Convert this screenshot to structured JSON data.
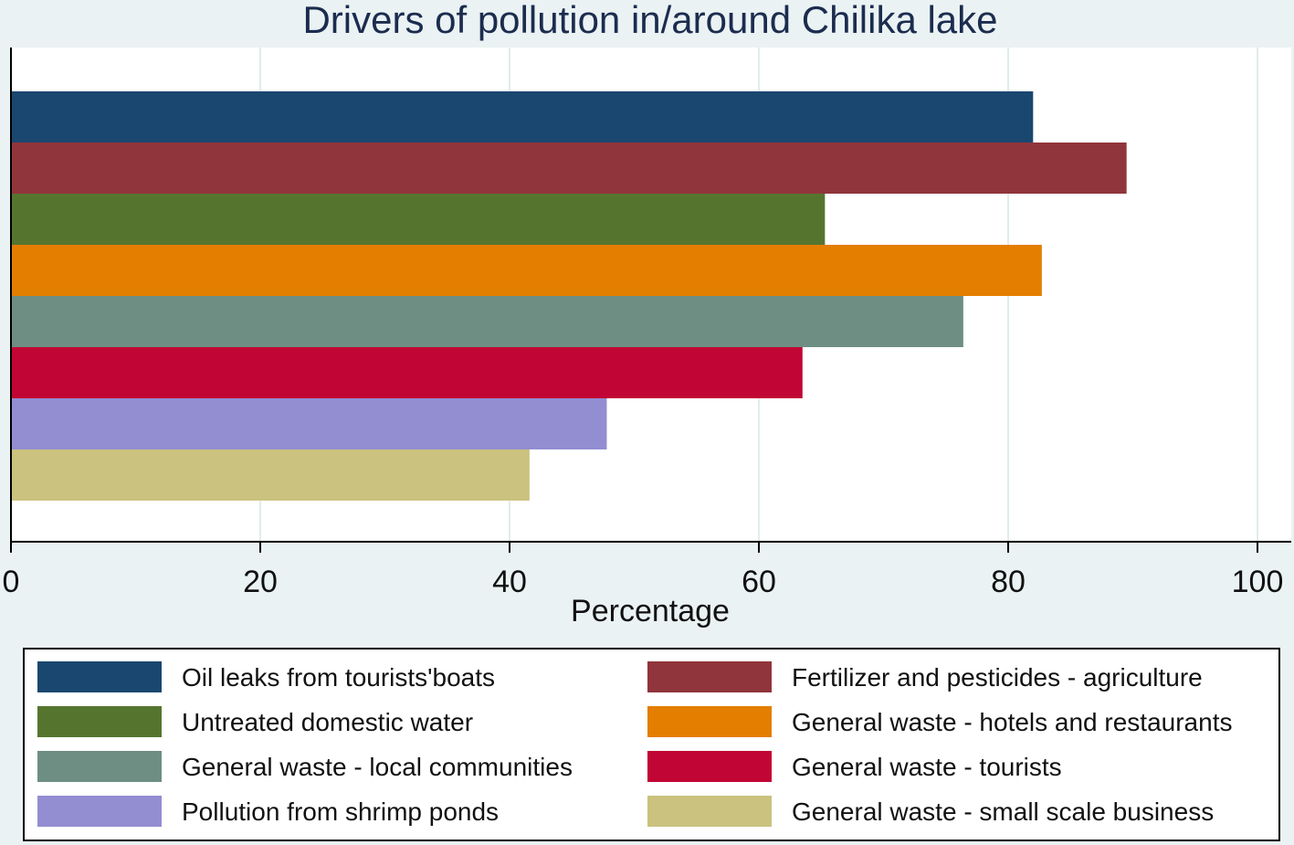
{
  "chart_data": {
    "type": "bar",
    "orientation": "horizontal",
    "title": "Drivers of pollution in/around Chilika lake",
    "xlabel": "Percentage",
    "ylabel": "",
    "xlim": [
      0,
      100
    ],
    "xticks": [
      "0",
      "20",
      "40",
      "60",
      "80",
      "100"
    ],
    "grid": true,
    "legend_position": "bottom",
    "series": [
      {
        "name": "Oil leaks from tourists'boats",
        "value": 82,
        "color": "#1a476f"
      },
      {
        "name": "Fertilizer and pesticides - agriculture",
        "value": 89.5,
        "color": "#90353b"
      },
      {
        "name": "Untreated domestic water",
        "value": 65.3,
        "color": "#55752f"
      },
      {
        "name": "General waste - hotels and restaurants",
        "value": 82.7,
        "color": "#e37e00"
      },
      {
        "name": "General waste - local communities",
        "value": 76.4,
        "color": "#6e8e84"
      },
      {
        "name": "General waste - tourists",
        "value": 63.5,
        "color": "#c10534"
      },
      {
        "name": "Pollution from shrimp ponds",
        "value": 47.8,
        "color": "#938dd2"
      },
      {
        "name": "General waste - small scale business",
        "value": 41.6,
        "color": "#cac27e"
      }
    ]
  }
}
